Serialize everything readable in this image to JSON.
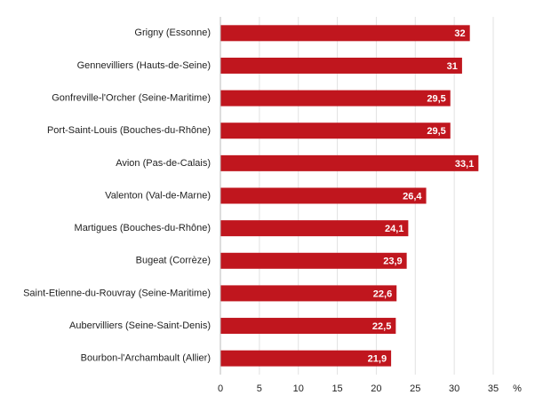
{
  "chart_data": {
    "type": "bar",
    "orientation": "horizontal",
    "categories": [
      "Grigny (Essonne)",
      "Gennevilliers (Hauts-de-Seine)",
      "Gonfreville-l'Orcher (Seine-Maritime)",
      "Port-Saint-Louis (Bouches-du-Rhône)",
      "Avion (Pas-de-Calais)",
      "Valenton (Val-de-Marne)",
      "Martigues (Bouches-du-Rhône)",
      "Bugeat (Corrèze)",
      "Saint-Etienne-du-Rouvray (Seine-Maritime)",
      "Aubervilliers (Seine-Saint-Denis)",
      "Bourbon-l'Archambault (Allier)"
    ],
    "values": [
      32,
      31,
      29.5,
      29.5,
      33.1,
      26.4,
      24.1,
      23.9,
      22.6,
      22.5,
      21.9
    ],
    "value_labels": [
      "32",
      "31",
      "29,5",
      "29,5",
      "33,1",
      "26,4",
      "24,1",
      "23,9",
      "22,6",
      "22,5",
      "21,9"
    ],
    "color": "#c0161e",
    "xlim": [
      0,
      35
    ],
    "xticks": [
      0,
      5,
      10,
      15,
      20,
      25,
      30,
      35
    ],
    "x_label": "%",
    "grid": true
  }
}
